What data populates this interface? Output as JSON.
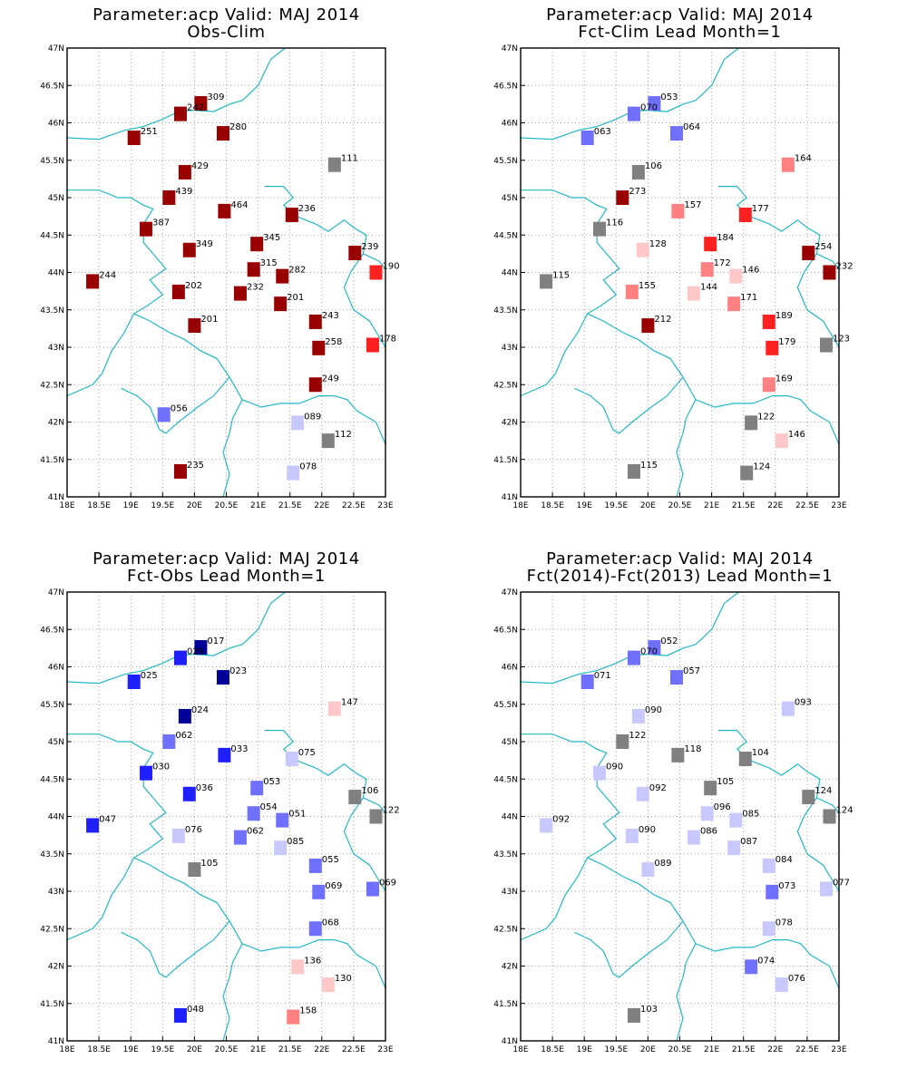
{
  "chart_data": [
    {
      "type": "scatter",
      "title": "Parameter:acp Valid: MAJ 2014",
      "subtitle": "Obs-Clim",
      "xlim": [
        18,
        23
      ],
      "ylim": [
        41,
        47
      ],
      "xticks": [
        "18E",
        "18.5E",
        "19E",
        "19.5E",
        "20E",
        "20.5E",
        "21E",
        "21.5E",
        "22E",
        "22.5E",
        "23E"
      ],
      "yticks": [
        "41N",
        "41.5N",
        "42N",
        "42.5N",
        "43N",
        "43.5N",
        "44N",
        "44.5N",
        "45N",
        "45.5N",
        "46N",
        "46.5N",
        "47N"
      ],
      "grid": true,
      "points": [
        {
          "lon": 20.1,
          "lat": 46.26,
          "label": "309",
          "color": "#990000"
        },
        {
          "lon": 19.78,
          "lat": 46.12,
          "label": "242",
          "color": "#990000"
        },
        {
          "lon": 19.05,
          "lat": 45.8,
          "label": "251",
          "color": "#990000"
        },
        {
          "lon": 20.45,
          "lat": 45.86,
          "label": "280",
          "color": "#990000"
        },
        {
          "lon": 19.85,
          "lat": 45.34,
          "label": "429",
          "color": "#990000"
        },
        {
          "lon": 22.2,
          "lat": 45.44,
          "label": "111",
          "color": "#808080"
        },
        {
          "lon": 19.6,
          "lat": 45.0,
          "label": "439",
          "color": "#990000"
        },
        {
          "lon": 20.47,
          "lat": 44.82,
          "label": "464",
          "color": "#990000"
        },
        {
          "lon": 21.53,
          "lat": 44.77,
          "label": "236",
          "color": "#990000"
        },
        {
          "lon": 19.24,
          "lat": 44.58,
          "label": "387",
          "color": "#990000"
        },
        {
          "lon": 19.92,
          "lat": 44.3,
          "label": "349",
          "color": "#990000"
        },
        {
          "lon": 20.98,
          "lat": 44.38,
          "label": "345",
          "color": "#990000"
        },
        {
          "lon": 22.52,
          "lat": 44.26,
          "label": "239",
          "color": "#990000"
        },
        {
          "lon": 22.85,
          "lat": 44.0,
          "label": "190",
          "color": "#ff2020"
        },
        {
          "lon": 18.4,
          "lat": 43.88,
          "label": "244",
          "color": "#990000"
        },
        {
          "lon": 20.93,
          "lat": 44.04,
          "label": "315",
          "color": "#990000"
        },
        {
          "lon": 21.38,
          "lat": 43.95,
          "label": "282",
          "color": "#990000"
        },
        {
          "lon": 19.75,
          "lat": 43.74,
          "label": "202",
          "color": "#990000"
        },
        {
          "lon": 20.72,
          "lat": 43.72,
          "label": "232",
          "color": "#990000"
        },
        {
          "lon": 21.35,
          "lat": 43.58,
          "label": "201",
          "color": "#990000"
        },
        {
          "lon": 20.0,
          "lat": 43.29,
          "label": "201",
          "color": "#990000"
        },
        {
          "lon": 21.9,
          "lat": 43.34,
          "label": "243",
          "color": "#990000"
        },
        {
          "lon": 21.95,
          "lat": 42.99,
          "label": "258",
          "color": "#990000"
        },
        {
          "lon": 22.8,
          "lat": 43.03,
          "label": "178",
          "color": "#ff2020"
        },
        {
          "lon": 21.9,
          "lat": 42.5,
          "label": "249",
          "color": "#990000"
        },
        {
          "lon": 19.52,
          "lat": 42.1,
          "label": "056",
          "color": "#7070ff"
        },
        {
          "lon": 21.62,
          "lat": 41.99,
          "label": "089",
          "color": "#c8c8ff"
        },
        {
          "lon": 22.1,
          "lat": 41.75,
          "label": "112",
          "color": "#808080"
        },
        {
          "lon": 19.78,
          "lat": 41.34,
          "label": "235",
          "color": "#990000"
        },
        {
          "lon": 21.55,
          "lat": 41.32,
          "label": "078",
          "color": "#c8c8ff"
        }
      ]
    },
    {
      "type": "scatter",
      "title": "Parameter:acp Valid: MAJ 2014",
      "subtitle": "Fct-Clim Lead Month=1",
      "xlim": [
        18,
        23
      ],
      "ylim": [
        41,
        47
      ],
      "xticks": [
        "18E",
        "18.5E",
        "19E",
        "19.5E",
        "20E",
        "20.5E",
        "21E",
        "21.5E",
        "22E",
        "22.5E",
        "23E"
      ],
      "yticks": [
        "41N",
        "41.5N",
        "42N",
        "42.5N",
        "43N",
        "43.5N",
        "44N",
        "44.5N",
        "45N",
        "45.5N",
        "46N",
        "46.5N",
        "47N"
      ],
      "grid": true,
      "points": [
        {
          "lon": 20.1,
          "lat": 46.26,
          "label": "053",
          "color": "#7070ff"
        },
        {
          "lon": 19.78,
          "lat": 46.12,
          "label": "070",
          "color": "#7070ff"
        },
        {
          "lon": 19.05,
          "lat": 45.8,
          "label": "063",
          "color": "#7070ff"
        },
        {
          "lon": 20.45,
          "lat": 45.86,
          "label": "064",
          "color": "#7070ff"
        },
        {
          "lon": 19.85,
          "lat": 45.34,
          "label": "106",
          "color": "#808080"
        },
        {
          "lon": 22.2,
          "lat": 45.44,
          "label": "164",
          "color": "#ff8080"
        },
        {
          "lon": 19.6,
          "lat": 45.0,
          "label": "273",
          "color": "#990000"
        },
        {
          "lon": 20.47,
          "lat": 44.82,
          "label": "157",
          "color": "#ff8080"
        },
        {
          "lon": 21.53,
          "lat": 44.77,
          "label": "177",
          "color": "#ff2020"
        },
        {
          "lon": 19.24,
          "lat": 44.58,
          "label": "116",
          "color": "#808080"
        },
        {
          "lon": 19.92,
          "lat": 44.3,
          "label": "128",
          "color": "#ffc8c8"
        },
        {
          "lon": 20.98,
          "lat": 44.38,
          "label": "184",
          "color": "#ff2020"
        },
        {
          "lon": 22.52,
          "lat": 44.26,
          "label": "254",
          "color": "#990000"
        },
        {
          "lon": 22.85,
          "lat": 44.0,
          "label": "232",
          "color": "#990000"
        },
        {
          "lon": 18.4,
          "lat": 43.88,
          "label": "115",
          "color": "#808080"
        },
        {
          "lon": 20.93,
          "lat": 44.04,
          "label": "172",
          "color": "#ff8080"
        },
        {
          "lon": 21.38,
          "lat": 43.95,
          "label": "146",
          "color": "#ffc8c8"
        },
        {
          "lon": 19.75,
          "lat": 43.74,
          "label": "155",
          "color": "#ff8080"
        },
        {
          "lon": 20.72,
          "lat": 43.72,
          "label": "144",
          "color": "#ffc8c8"
        },
        {
          "lon": 21.35,
          "lat": 43.58,
          "label": "171",
          "color": "#ff8080"
        },
        {
          "lon": 20.0,
          "lat": 43.29,
          "label": "212",
          "color": "#990000"
        },
        {
          "lon": 21.9,
          "lat": 43.34,
          "label": "189",
          "color": "#ff2020"
        },
        {
          "lon": 21.95,
          "lat": 42.99,
          "label": "179",
          "color": "#ff2020"
        },
        {
          "lon": 22.8,
          "lat": 43.03,
          "label": "123",
          "color": "#808080"
        },
        {
          "lon": 21.9,
          "lat": 42.5,
          "label": "169",
          "color": "#ff8080"
        },
        {
          "lon": 21.62,
          "lat": 41.99,
          "label": "122",
          "color": "#808080"
        },
        {
          "lon": 22.1,
          "lat": 41.75,
          "label": "146",
          "color": "#ffc8c8"
        },
        {
          "lon": 19.78,
          "lat": 41.34,
          "label": "115",
          "color": "#808080"
        },
        {
          "lon": 21.55,
          "lat": 41.32,
          "label": "124",
          "color": "#808080"
        }
      ]
    },
    {
      "type": "scatter",
      "title": "Parameter:acp Valid: MAJ 2014",
      "subtitle": "Fct-Obs Lead Month=1",
      "xlim": [
        18,
        23
      ],
      "ylim": [
        41,
        47
      ],
      "xticks": [
        "18E",
        "18.5E",
        "19E",
        "19.5E",
        "20E",
        "20.5E",
        "21E",
        "21.5E",
        "22E",
        "22.5E",
        "23E"
      ],
      "yticks": [
        "41N",
        "41.5N",
        "42N",
        "42.5N",
        "43N",
        "43.5N",
        "44N",
        "44.5N",
        "45N",
        "45.5N",
        "46N",
        "46.5N",
        "47N"
      ],
      "grid": true,
      "points": [
        {
          "lon": 20.1,
          "lat": 46.26,
          "label": "017",
          "color": "#000099"
        },
        {
          "lon": 19.78,
          "lat": 46.12,
          "label": "029",
          "color": "#2020ff"
        },
        {
          "lon": 19.05,
          "lat": 45.8,
          "label": "025",
          "color": "#2020ff"
        },
        {
          "lon": 20.45,
          "lat": 45.86,
          "label": "023",
          "color": "#000099"
        },
        {
          "lon": 19.85,
          "lat": 45.34,
          "label": "024",
          "color": "#000099"
        },
        {
          "lon": 22.2,
          "lat": 45.44,
          "label": "147",
          "color": "#ffc8c8"
        },
        {
          "lon": 19.6,
          "lat": 45.0,
          "label": "062",
          "color": "#7070ff"
        },
        {
          "lon": 20.47,
          "lat": 44.82,
          "label": "033",
          "color": "#2020ff"
        },
        {
          "lon": 21.53,
          "lat": 44.77,
          "label": "075",
          "color": "#c8c8ff"
        },
        {
          "lon": 19.24,
          "lat": 44.58,
          "label": "030",
          "color": "#2020ff"
        },
        {
          "lon": 19.92,
          "lat": 44.3,
          "label": "036",
          "color": "#2020ff"
        },
        {
          "lon": 20.98,
          "lat": 44.38,
          "label": "053",
          "color": "#7070ff"
        },
        {
          "lon": 22.52,
          "lat": 44.26,
          "label": "106",
          "color": "#808080"
        },
        {
          "lon": 22.85,
          "lat": 44.0,
          "label": "122",
          "color": "#808080"
        },
        {
          "lon": 18.4,
          "lat": 43.88,
          "label": "047",
          "color": "#2020ff"
        },
        {
          "lon": 20.93,
          "lat": 44.04,
          "label": "054",
          "color": "#7070ff"
        },
        {
          "lon": 21.38,
          "lat": 43.95,
          "label": "051",
          "color": "#7070ff"
        },
        {
          "lon": 19.75,
          "lat": 43.74,
          "label": "076",
          "color": "#c8c8ff"
        },
        {
          "lon": 20.72,
          "lat": 43.72,
          "label": "062",
          "color": "#7070ff"
        },
        {
          "lon": 21.35,
          "lat": 43.58,
          "label": "085",
          "color": "#c8c8ff"
        },
        {
          "lon": 20.0,
          "lat": 43.29,
          "label": "105",
          "color": "#808080"
        },
        {
          "lon": 21.9,
          "lat": 43.34,
          "label": "055",
          "color": "#7070ff"
        },
        {
          "lon": 21.95,
          "lat": 42.99,
          "label": "069",
          "color": "#7070ff"
        },
        {
          "lon": 22.8,
          "lat": 43.03,
          "label": "069",
          "color": "#7070ff"
        },
        {
          "lon": 21.9,
          "lat": 42.5,
          "label": "068",
          "color": "#7070ff"
        },
        {
          "lon": 21.62,
          "lat": 41.99,
          "label": "136",
          "color": "#ffc8c8"
        },
        {
          "lon": 22.1,
          "lat": 41.75,
          "label": "130",
          "color": "#ffc8c8"
        },
        {
          "lon": 19.78,
          "lat": 41.34,
          "label": "048",
          "color": "#2020ff"
        },
        {
          "lon": 21.55,
          "lat": 41.32,
          "label": "158",
          "color": "#ff8080"
        }
      ]
    },
    {
      "type": "scatter",
      "title": "Parameter:acp Valid: MAJ 2014",
      "subtitle": "Fct(2014)-Fct(2013) Lead Month=1",
      "xlim": [
        18,
        23
      ],
      "ylim": [
        41,
        47
      ],
      "xticks": [
        "18E",
        "18.5E",
        "19E",
        "19.5E",
        "20E",
        "20.5E",
        "21E",
        "21.5E",
        "22E",
        "22.5E",
        "23E"
      ],
      "yticks": [
        "41N",
        "41.5N",
        "42N",
        "42.5N",
        "43N",
        "43.5N",
        "44N",
        "44.5N",
        "45N",
        "45.5N",
        "46N",
        "46.5N",
        "47N"
      ],
      "grid": true,
      "points": [
        {
          "lon": 20.1,
          "lat": 46.26,
          "label": "052",
          "color": "#7070ff"
        },
        {
          "lon": 19.78,
          "lat": 46.12,
          "label": "070",
          "color": "#7070ff"
        },
        {
          "lon": 19.05,
          "lat": 45.8,
          "label": "071",
          "color": "#7070ff"
        },
        {
          "lon": 20.45,
          "lat": 45.86,
          "label": "057",
          "color": "#7070ff"
        },
        {
          "lon": 19.85,
          "lat": 45.34,
          "label": "090",
          "color": "#c8c8ff"
        },
        {
          "lon": 22.2,
          "lat": 45.44,
          "label": "093",
          "color": "#c8c8ff"
        },
        {
          "lon": 19.6,
          "lat": 45.0,
          "label": "122",
          "color": "#808080"
        },
        {
          "lon": 20.47,
          "lat": 44.82,
          "label": "118",
          "color": "#808080"
        },
        {
          "lon": 21.53,
          "lat": 44.77,
          "label": "104",
          "color": "#808080"
        },
        {
          "lon": 19.24,
          "lat": 44.58,
          "label": "090",
          "color": "#c8c8ff"
        },
        {
          "lon": 19.92,
          "lat": 44.3,
          "label": "092",
          "color": "#c8c8ff"
        },
        {
          "lon": 20.98,
          "lat": 44.38,
          "label": "105",
          "color": "#808080"
        },
        {
          "lon": 22.52,
          "lat": 44.26,
          "label": "124",
          "color": "#808080"
        },
        {
          "lon": 22.85,
          "lat": 44.0,
          "label": "124",
          "color": "#808080"
        },
        {
          "lon": 18.4,
          "lat": 43.88,
          "label": "092",
          "color": "#c8c8ff"
        },
        {
          "lon": 20.93,
          "lat": 44.04,
          "label": "096",
          "color": "#c8c8ff"
        },
        {
          "lon": 21.38,
          "lat": 43.95,
          "label": "085",
          "color": "#c8c8ff"
        },
        {
          "lon": 19.75,
          "lat": 43.74,
          "label": "090",
          "color": "#c8c8ff"
        },
        {
          "lon": 20.72,
          "lat": 43.72,
          "label": "086",
          "color": "#c8c8ff"
        },
        {
          "lon": 21.35,
          "lat": 43.58,
          "label": "087",
          "color": "#c8c8ff"
        },
        {
          "lon": 20.0,
          "lat": 43.29,
          "label": "089",
          "color": "#c8c8ff"
        },
        {
          "lon": 21.9,
          "lat": 43.34,
          "label": "084",
          "color": "#c8c8ff"
        },
        {
          "lon": 21.95,
          "lat": 42.99,
          "label": "073",
          "color": "#7070ff"
        },
        {
          "lon": 22.8,
          "lat": 43.03,
          "label": "077",
          "color": "#c8c8ff"
        },
        {
          "lon": 21.9,
          "lat": 42.5,
          "label": "078",
          "color": "#c8c8ff"
        },
        {
          "lon": 21.62,
          "lat": 41.99,
          "label": "074",
          "color": "#7070ff"
        },
        {
          "lon": 22.1,
          "lat": 41.75,
          "label": "076",
          "color": "#c8c8ff"
        },
        {
          "lon": 19.78,
          "lat": 41.34,
          "label": "103",
          "color": "#808080"
        }
      ]
    }
  ],
  "colors": {
    "frame": "#000000",
    "grid": "#a0a0a0",
    "border": "#22b8c8",
    "text": "#000000"
  }
}
